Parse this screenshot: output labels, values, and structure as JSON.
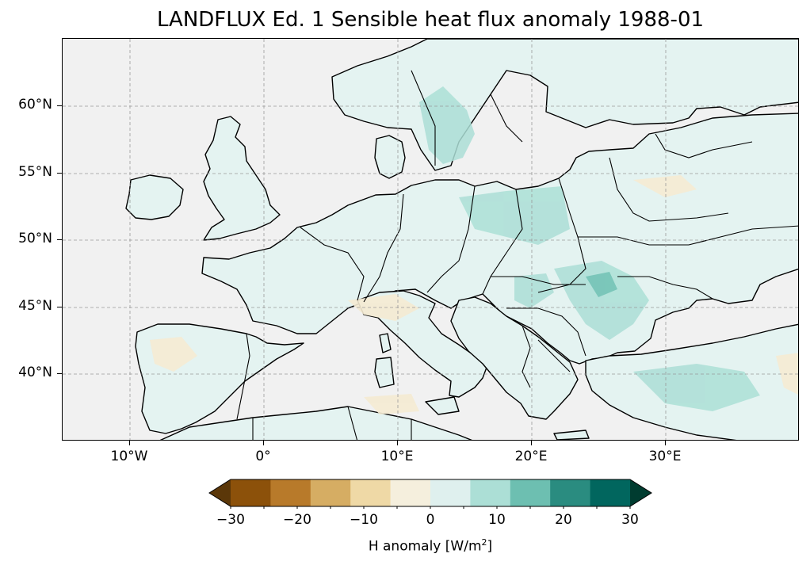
{
  "title": "LANDFLUX Ed. 1 Sensible heat flux anomaly 1988-01",
  "map": {
    "lon_range": [
      -15,
      40
    ],
    "lat_range": [
      35,
      65
    ],
    "lat_labels": [
      "60°N",
      "55°N",
      "50°N",
      "45°N",
      "40°N"
    ],
    "lon_labels": [
      "10°W",
      "0°",
      "10°E",
      "20°E",
      "30°E"
    ],
    "gridlines": true,
    "ocean_color": "#f1f1f1",
    "coastline_color": "#000000"
  },
  "colorbar": {
    "label": "H anomaly [W/m",
    "label_sup": "2",
    "label_end": "]",
    "tick_labels": [
      "−30",
      "−20",
      "−10",
      "0",
      "10",
      "20",
      "30"
    ],
    "levels": [
      -30,
      -25,
      -20,
      -15,
      -10,
      -5,
      0,
      5,
      10,
      15,
      20,
      25,
      30
    ],
    "colors": [
      "#5b3709",
      "#8c510a",
      "#b87a2a",
      "#d6ad63",
      "#efd9a6",
      "#f5efdd",
      "#dff0ee",
      "#acdfd6",
      "#6dbfb1",
      "#2a8c80",
      "#01665e",
      "#003c30"
    ],
    "extend": "both"
  }
}
